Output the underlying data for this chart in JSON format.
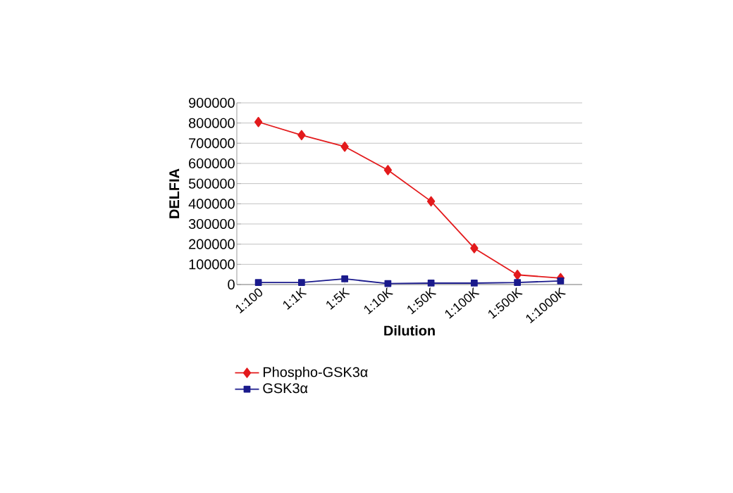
{
  "chart_data": {
    "type": "line",
    "xlabel": "Dilution",
    "ylabel": "DELFIA",
    "categories": [
      "1:100",
      "1:1K",
      "1:5K",
      "1:10K",
      "1:50K",
      "1:100K",
      "1:500K",
      "1:1000K"
    ],
    "series": [
      {
        "name": "Phospho-GSK3α",
        "color": "#e31a1c",
        "marker": "diamond",
        "values": [
          805000,
          740000,
          683000,
          567000,
          412000,
          180000,
          48000,
          32000
        ]
      },
      {
        "name": "GSK3α",
        "color": "#1a1a8c",
        "marker": "square",
        "values": [
          10000,
          10000,
          28000,
          5000,
          7000,
          7000,
          10000,
          18000
        ]
      }
    ],
    "ylim": [
      0,
      900000
    ],
    "yticks": [
      0,
      100000,
      200000,
      300000,
      400000,
      500000,
      600000,
      700000,
      800000,
      900000
    ],
    "grid": "y",
    "legend": "bottom left",
    "line_style": "solid"
  }
}
